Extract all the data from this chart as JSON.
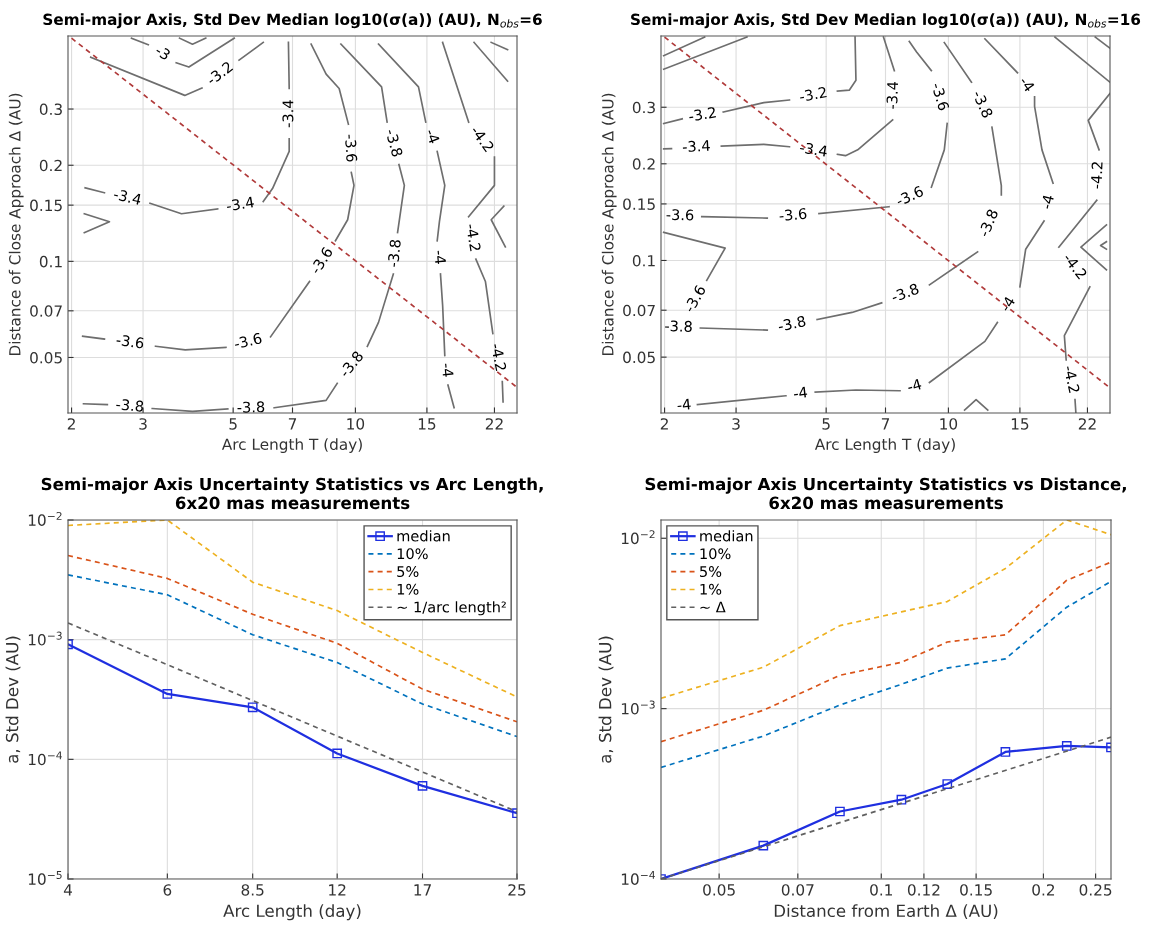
{
  "chart_data": [
    {
      "type": "line",
      "title": "Semi-major Axis, Std Dev Median log10(σ(a)) (AU), N$_{obs}$=6",
      "xlabel": "Arc Length T (day)",
      "ylabel": "Distance of Close Approach Δ (AU)",
      "log": "xy",
      "grid": true,
      "xlim": [
        1.96,
        25
      ],
      "ylim": [
        0.0335,
        0.508
      ],
      "xticks": [
        2,
        3,
        5,
        7,
        10,
        15,
        22
      ],
      "yticks": [
        0.05,
        0.07,
        0.1,
        0.15,
        0.2,
        0.3
      ],
      "series": [
        {
          "color": "#6e6e6e",
          "x": [
            2.81,
            3.09,
            null,
            3.62,
            3.89,
            5.03
          ],
          "values": [
            0.5,
            0.477,
            null,
            0.419,
            0.406,
            0.5
          ]
        },
        {
          "color": "#6e6e6e",
          "x": [
            3.69,
            3.97,
            4.28
          ],
          "values": [
            0.5,
            0.479,
            0.5
          ]
        },
        {
          "color": "#6e6e6e",
          "x": [
            2.23,
            3.8,
            4.19,
            null,
            5.17,
            5.93
          ],
          "values": [
            0.436,
            0.331,
            0.349,
            null,
            0.427,
            0.485
          ]
        },
        {
          "color": "#6e6e6e",
          "x": [
            6.84,
            6.87,
            null,
            6.87,
            6.87,
            6.25,
            5.93,
            null,
            4.58,
            3.73,
            3.12,
            null,
            2.41,
            2.16
          ],
          "values": [
            0.485,
            0.348,
            null,
            0.242,
            0.221,
            0.169,
            0.154,
            null,
            0.146,
            0.141,
            0.152,
            null,
            0.164,
            0.17
          ]
        },
        {
          "color": "#6e6e6e",
          "x": [
            2.15,
            2.48,
            2.15
          ],
          "values": [
            0.141,
            0.133,
            0.123
          ]
        },
        {
          "color": "#6e6e6e",
          "x": [
            7.78,
            8.47,
            9.12,
            9.61,
            null,
            9.77,
            9.92,
            9.57,
            8.93,
            null,
            7.71,
            6.18,
            null,
            4.8,
            3.81,
            3.22,
            null,
            2.41,
            2.13
          ],
          "values": [
            0.479,
            0.386,
            0.348,
            0.269,
            null,
            0.19,
            0.173,
            0.135,
            0.116,
            null,
            0.0865,
            0.058,
            null,
            0.0538,
            0.0528,
            0.0542,
            null,
            0.0571,
            0.0583
          ]
        },
        {
          "color": "#6e6e6e",
          "x": [
            9.21,
            11.6,
            11.97,
            null,
            12.8,
            13.2,
            12.7,
            null,
            12.4,
            11.4,
            10.7,
            null,
            9.02,
            8.47,
            6.31,
            null,
            4.85,
            3.97,
            3.16,
            null,
            2.45,
            2.14
          ],
          "values": [
            0.479,
            0.352,
            0.273,
            null,
            0.201,
            0.173,
            0.123,
            null,
            0.0913,
            0.0644,
            0.0542,
            null,
            0.0415,
            0.0367,
            0.0348,
            null,
            0.0345,
            0.0339,
            0.0346,
            null,
            0.0356,
            0.0358
          ]
        },
        {
          "color": "#6e6e6e",
          "x": [
            11.4,
            14.3,
            14.9,
            null,
            15.9,
            16.6,
            16.1,
            15.9,
            null,
            16.2,
            16.4,
            16.6,
            null,
            16.9,
            17.5
          ],
          "values": [
            0.479,
            0.352,
            0.273,
            null,
            0.221,
            0.173,
            0.133,
            0.116,
            null,
            0.0913,
            0.0727,
            0.0507,
            null,
            0.041,
            0.0348
          ]
        },
        {
          "color": "#6e6e6e",
          "x": [
            16.4,
            19.0,
            null,
            22.0,
            22.0,
            19.0,
            null,
            19.8,
            20.9,
            21.8,
            null,
            23.0,
            23.1
          ],
          "values": [
            0.485,
            0.273,
            null,
            0.212,
            0.173,
            0.138,
            null,
            0.1016,
            0.0865,
            0.0594,
            null,
            0.042,
            0.0363
          ]
        },
        {
          "color": "#6e6e6e",
          "x": [
            19.6,
            23.7
          ],
          "values": [
            0.485,
            0.367
          ]
        },
        {
          "color": "#6e6e6e",
          "x": [
            21.6,
            23.7
          ],
          "values": [
            0.485,
            0.46
          ]
        },
        {
          "color": "#6e6e6e",
          "x": [
            23.2,
            21.6,
            23.4
          ],
          "values": [
            0.149,
            0.135,
            0.111
          ]
        },
        {
          "color": "#b03a3a",
          "line_style": "dashed",
          "x": [
            2.0,
            25.0
          ],
          "values": [
            0.5,
            0.0403
          ]
        }
      ],
      "annotations": [
        {
          "text": "-3",
          "x": 3.09,
          "y": 0.477
        },
        {
          "text": "-3.2",
          "x": 4.19,
          "y": 0.349
        },
        {
          "text": "-3.4",
          "x": 6.87,
          "y": 0.348
        },
        {
          "text": "-3.4",
          "x": 5.93,
          "y": 0.154
        },
        {
          "text": "-3.4",
          "x": 3.12,
          "y": 0.152
        },
        {
          "text": "-3.6",
          "x": 9.61,
          "y": 0.269
        },
        {
          "text": "-3.6",
          "x": 8.93,
          "y": 0.116
        },
        {
          "text": "-3.6",
          "x": 6.18,
          "y": 0.058
        },
        {
          "text": "-3.6",
          "x": 3.22,
          "y": 0.0542
        },
        {
          "text": "-3.8",
          "x": 11.97,
          "y": 0.273
        },
        {
          "text": "-3.8",
          "x": 12.7,
          "y": 0.123
        },
        {
          "text": "-3.8",
          "x": 10.7,
          "y": 0.0542
        },
        {
          "text": "-3.8",
          "x": 6.31,
          "y": 0.0348
        },
        {
          "text": "-3.8",
          "x": 3.16,
          "y": 0.0346
        },
        {
          "text": "-4",
          "x": 14.9,
          "y": 0.273
        },
        {
          "text": "-4",
          "x": 15.9,
          "y": 0.116
        },
        {
          "text": "-4",
          "x": 16.6,
          "y": 0.0507
        },
        {
          "text": "-4.2",
          "x": 19.0,
          "y": 0.273
        },
        {
          "text": "-4.2",
          "x": 19.0,
          "y": 0.138
        },
        {
          "text": "-4.2",
          "x": 21.8,
          "y": 0.0594
        }
      ]
    },
    {
      "type": "line",
      "title": "Semi-major Axis, Std Dev Median log10(σ(a)) (AU), N$_{obs}$=16",
      "xlabel": "Arc Length T (day)",
      "ylabel": "Distance of Close Approach Δ (AU)",
      "log": "xy",
      "grid": true,
      "xlim": [
        1.96,
        25
      ],
      "ylim": [
        0.0335,
        0.5
      ],
      "xticks": [
        2,
        3,
        5,
        7,
        10,
        15,
        22
      ],
      "yticks": [
        0.05,
        0.07,
        0.1,
        0.15,
        0.2,
        0.3
      ],
      "series": [
        {
          "color": "#6e6e6e",
          "x": [
            1.99,
            2.51
          ],
          "values": [
            0.434,
            0.496
          ]
        },
        {
          "color": "#6e6e6e",
          "x": [
            1.99,
            3.19
          ],
          "values": [
            0.394,
            0.496
          ]
        },
        {
          "color": "#6e6e6e",
          "x": [
            1.99,
            2.21,
            null,
            2.79,
            3.51,
            4.06,
            null,
            5.33,
            5.7,
            5.92,
            5.89
          ],
          "values": [
            0.267,
            0.276,
            null,
            0.29,
            0.31,
            0.316,
            null,
            0.337,
            0.339,
            0.364,
            0.496
          ]
        },
        {
          "color": "#6e6e6e",
          "x": [
            1.99,
            2.08,
            null,
            2.76,
            3.51,
            4.06,
            null,
            5.33,
            5.58,
            5.98,
            7.29,
            null,
            7.36,
            6.92
          ],
          "values": [
            0.2225,
            0.223,
            null,
            0.227,
            0.23,
            0.226,
            null,
            0.214,
            0.212,
            0.221,
            0.274,
            null,
            0.39,
            0.496
          ]
        },
        {
          "color": "#6e6e6e",
          "x": [
            2.47,
            3.58,
            null,
            4.8,
            7.14,
            null,
            9.08,
            9.77,
            9.93,
            null,
            9.08,
            8.35,
            8.01
          ],
          "values": [
            0.137,
            0.1355,
            null,
            0.14,
            0.147,
            null,
            0.169,
            0.221,
            0.267,
            null,
            0.39,
            0.446,
            0.481
          ]
        },
        {
          "color": "#6e6e6e",
          "x": [
            1.99,
            2.82,
            2.54
          ],
          "values": [
            0.1224,
            0.1093,
            0.0867
          ]
        },
        {
          "color": "#6e6e6e",
          "x": [
            2.45,
            3.58,
            null,
            4.75,
            5.79,
            6.85,
            null,
            8.98,
            11.8,
            null,
            13.5,
            13.5,
            12.8,
            null,
            11.4,
            9.77
          ],
          "values": [
            0.0616,
            0.0607,
            null,
            0.0655,
            0.0689,
            0.0738,
            null,
            0.0839,
            0.1064,
            null,
            0.16,
            0.171,
            0.26,
            null,
            0.359,
            0.477
          ]
        },
        {
          "color": "#6e6e6e",
          "x": [
            2.41,
            3.98,
            null,
            4.7,
            5.92,
            7.6,
            null,
            8.98,
            12.3,
            13.2,
            null,
            15.0,
            15.5,
            17.2,
            null,
            18.1,
            17.0,
            16.3,
            16.3,
            null,
            14.8,
            12.3
          ],
          "values": [
            0.0356,
            0.0379,
            null,
            0.0389,
            0.0395,
            0.0393,
            null,
            0.0417,
            0.056,
            0.0641,
            null,
            0.0828,
            0.1084,
            0.1327,
            null,
            0.174,
            0.221,
            0.302,
            0.323,
            null,
            0.384,
            0.49
          ]
        },
        {
          "color": "#6e6e6e",
          "x": [
            18.3,
            25.0
          ],
          "values": [
            0.496,
            0.359
          ]
        },
        {
          "color": "#6e6e6e",
          "x": [
            23.0,
            25.0
          ],
          "values": [
            0.496,
            0.458
          ]
        },
        {
          "color": "#6e6e6e",
          "x": [
            25.0,
            22.1,
            23.5,
            null,
            23.2,
            18.7,
            null,
            22.3,
            19.3,
            19.5,
            null,
            20.5,
            20.6
          ],
          "values": [
            0.331,
            0.273,
            0.221,
            null,
            0.154,
            0.11,
            null,
            0.0828,
            0.0583,
            0.049,
            null,
            0.0369,
            0.0336
          ]
        },
        {
          "color": "#6e6e6e",
          "x": [
            24.5,
            21.2,
            24.5
          ],
          "values": [
            0.129,
            0.11,
            0.0935
          ]
        },
        {
          "color": "#6e6e6e",
          "x": [
            24.5,
            23.7,
            24.5
          ],
          "values": [
            0.1144,
            0.1113,
            0.1084
          ]
        },
        {
          "color": "#6e6e6e",
          "x": [
            10.96,
            11.7,
            12.5
          ],
          "values": [
            0.0342,
            0.0369,
            0.0342
          ]
        },
        {
          "color": "#b03a3a",
          "line_style": "dashed",
          "x": [
            2.0,
            24.7
          ],
          "values": [
            0.496,
            0.0406
          ]
        }
      ],
      "annotations": [
        {
          "text": "-3.2",
          "x": 2.21,
          "y": 0.276
        },
        {
          "text": "-3.2",
          "x": 4.06,
          "y": 0.316
        },
        {
          "text": "-3.4",
          "x": 2.08,
          "y": 0.223
        },
        {
          "text": "-3.4",
          "x": 4.06,
          "y": 0.226
        },
        {
          "text": "-3.4",
          "x": 7.29,
          "y": 0.274
        },
        {
          "text": "-3.6",
          "x": 2.47,
          "y": 0.137
        },
        {
          "text": "-3.6",
          "x": 3.58,
          "y": 0.1355
        },
        {
          "text": "-3.6",
          "x": 7.14,
          "y": 0.147
        },
        {
          "text": "-3.6",
          "x": 9.93,
          "y": 0.267
        },
        {
          "text": "-3.6",
          "x": 2.54,
          "y": 0.0867
        },
        {
          "text": "-3.8",
          "x": 2.45,
          "y": 0.0616
        },
        {
          "text": "-3.8",
          "x": 3.58,
          "y": 0.0607
        },
        {
          "text": "-3.8",
          "x": 6.85,
          "y": 0.0738
        },
        {
          "text": "-3.8",
          "x": 11.8,
          "y": 0.1064
        },
        {
          "text": "-3.8",
          "x": 12.8,
          "y": 0.26
        },
        {
          "text": "-4",
          "x": 2.41,
          "y": 0.0356
        },
        {
          "text": "-4",
          "x": 3.98,
          "y": 0.0379
        },
        {
          "text": "-4",
          "x": 7.6,
          "y": 0.0393
        },
        {
          "text": "-4",
          "x": 13.2,
          "y": 0.0641
        },
        {
          "text": "-4",
          "x": 17.2,
          "y": 0.1327
        },
        {
          "text": "-4",
          "x": 16.3,
          "y": 0.323
        },
        {
          "text": "-4.2",
          "x": 23.5,
          "y": 0.221
        },
        {
          "text": "-4.2",
          "x": 18.7,
          "y": 0.11
        },
        {
          "text": "-4.2",
          "x": 19.5,
          "y": 0.049
        }
      ]
    },
    {
      "type": "line",
      "title": "Semi-major Axis Uncertainty Statistics vs Arc Length,\n6x20 mas measurements",
      "xlabel": "Arc Length (day)",
      "ylabel": "a, Std Dev (AU)",
      "log": "xy",
      "grid": true,
      "legend": "top right",
      "xlim": [
        4,
        25
      ],
      "ylim": [
        1e-05,
        0.01
      ],
      "xticks": [
        4,
        6,
        8.5,
        12,
        17,
        25
      ],
      "yticks": [
        {
          "value": 1e-05,
          "label": "10$^{−5}$"
        },
        {
          "value": 0.0001,
          "label": "10$^{−4}$"
        },
        {
          "value": 0.001,
          "label": "10$^{−3}$"
        },
        {
          "value": 0.01,
          "label": "10$^{−2}$"
        }
      ],
      "x": [
        4,
        6,
        8.5,
        12,
        17,
        25
      ],
      "series": [
        {
          "name": "median",
          "color": "#1f2fe0",
          "marker": "square",
          "line_style": "solid",
          "values": [
            0.000914,
            0.000352,
            0.000272,
            0.000112,
            6e-05,
            3.55e-05
          ]
        },
        {
          "name": "10%",
          "color": "#0072bd",
          "line_style": "dashed",
          "values": [
            0.00348,
            0.00237,
            0.0011,
            0.000644,
            0.00029,
            0.000155
          ]
        },
        {
          "name": "5%",
          "color": "#d95319",
          "line_style": "dashed",
          "values": [
            0.00505,
            0.00325,
            0.00163,
            0.000933,
            0.000386,
            0.000206
          ]
        },
        {
          "name": "1%",
          "color": "#edb120",
          "line_style": "dashed",
          "values": [
            0.009,
            0.01,
            0.00302,
            0.00175,
            0.000781,
            0.000332
          ]
        },
        {
          "name": "∼ 1/arc length²",
          "color": "#606060",
          "line_style": "dashed",
          "x": [
            4,
            25
          ],
          "values": [
            0.00138,
            3.65e-05
          ]
        }
      ]
    },
    {
      "type": "line",
      "title": "Semi-major Axis Uncertainty Statistics vs Distance,\n6x20 mas measurements",
      "xlabel": "Distance from Earth Δ (AU)",
      "ylabel": "a, Std Dev (AU)",
      "log": "xy",
      "grid": true,
      "legend": "top left",
      "xlim": [
        0.039,
        0.267
      ],
      "ylim": [
        0.0001,
        0.0128
      ],
      "xticks": [
        0.05,
        0.07,
        0.1,
        0.12,
        0.15,
        0.2,
        0.25
      ],
      "yticks": [
        {
          "value": 0.0001,
          "label": "10$^{−4}$"
        },
        {
          "value": 0.001,
          "label": "10$^{−3}$"
        },
        {
          "value": 0.01,
          "label": "10$^{−2}$"
        }
      ],
      "x": [
        0.039,
        0.0604,
        0.0838,
        0.109,
        0.1326,
        0.17,
        0.221,
        0.267
      ],
      "series": [
        {
          "name": "median",
          "color": "#1f2fe0",
          "marker": "square",
          "line_style": "solid",
          "values": [
            0.0001,
            0.000157,
            0.000249,
            0.000292,
            0.000361,
            0.000557,
            0.000604,
            0.000592
          ]
        },
        {
          "name": "10%",
          "color": "#0072bd",
          "line_style": "dashed",
          "values": [
            0.000452,
            0.00069,
            0.00105,
            0.00139,
            0.00173,
            0.00196,
            0.00394,
            0.00558
          ]
        },
        {
          "name": "5%",
          "color": "#d95319",
          "line_style": "dashed",
          "values": [
            0.00064,
            0.000978,
            0.00157,
            0.00187,
            0.00246,
            0.00271,
            0.00567,
            0.00724
          ]
        },
        {
          "name": "1%",
          "color": "#edb120",
          "line_style": "dashed",
          "values": [
            0.00115,
            0.00175,
            0.00307,
            0.0037,
            0.00425,
            0.00665,
            0.0128,
            0.0105
          ]
        },
        {
          "name": "∼ Δ",
          "color": "#606060",
          "line_style": "dashed",
          "x": [
            0.039,
            0.267
          ],
          "values": [
            0.0001,
            0.00068
          ]
        }
      ]
    }
  ]
}
